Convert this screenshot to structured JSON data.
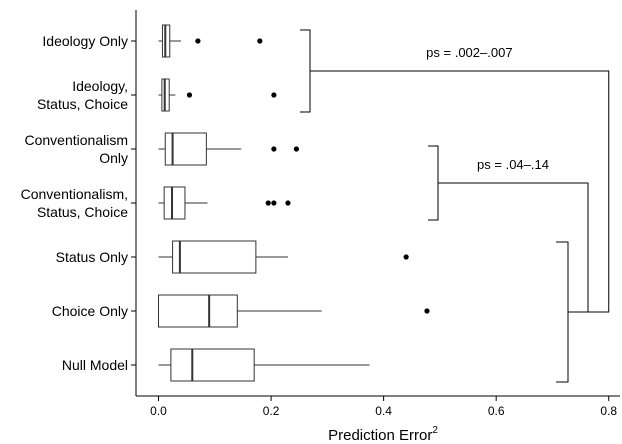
{
  "chart_data": {
    "type": "boxplot",
    "orientation": "horizontal",
    "xlabel": "Prediction Error",
    "xlabel_superscript": "2",
    "ylabel": "",
    "xlim": [
      -0.04,
      0.82
    ],
    "x_ticks": [
      0.0,
      0.2,
      0.4,
      0.6,
      0.8
    ],
    "x_tick_labels": [
      "0.0",
      "0.2",
      "0.4",
      "0.6",
      "0.8"
    ],
    "grid": false,
    "categories": [
      {
        "lines": [
          "Ideology Only"
        ]
      },
      {
        "lines": [
          "Ideology,",
          "Status, Choice"
        ]
      },
      {
        "lines": [
          "Conventionalism",
          "Only"
        ]
      },
      {
        "lines": [
          "Conventionalism,",
          "Status, Choice"
        ]
      },
      {
        "lines": [
          "Status Only"
        ]
      },
      {
        "lines": [
          "Choice Only"
        ]
      },
      {
        "lines": [
          "Null Model"
        ]
      }
    ],
    "boxes": [
      {
        "min": 0.0,
        "q1": 0.007,
        "median": 0.012,
        "q3": 0.02,
        "max": 0.04,
        "outliers": [
          0.07,
          0.18
        ]
      },
      {
        "min": 0.0,
        "q1": 0.006,
        "median": 0.011,
        "q3": 0.019,
        "max": 0.03,
        "outliers": [
          0.055,
          0.205
        ]
      },
      {
        "min": 0.0,
        "q1": 0.012,
        "median": 0.025,
        "q3": 0.085,
        "max": 0.147,
        "outliers": [
          0.205,
          0.245
        ]
      },
      {
        "min": 0.0,
        "q1": 0.01,
        "median": 0.024,
        "q3": 0.047,
        "max": 0.087,
        "outliers": [
          0.195,
          0.205,
          0.23
        ]
      },
      {
        "min": 0.0,
        "q1": 0.025,
        "median": 0.038,
        "q3": 0.173,
        "max": 0.23,
        "outliers": [
          0.44
        ]
      },
      {
        "min": 0.0,
        "q1": 0.0,
        "median": 0.09,
        "q3": 0.14,
        "max": 0.29,
        "outliers": [
          0.477
        ]
      },
      {
        "min": 0.0,
        "q1": 0.022,
        "median": 0.06,
        "q3": 0.17,
        "max": 0.375,
        "outliers": []
      }
    ],
    "annotations": [
      {
        "label": "ps = .002–.007",
        "groups": [
          0,
          1
        ]
      },
      {
        "label": "ps = .04–.14",
        "groups": [
          2,
          3
        ]
      }
    ]
  }
}
